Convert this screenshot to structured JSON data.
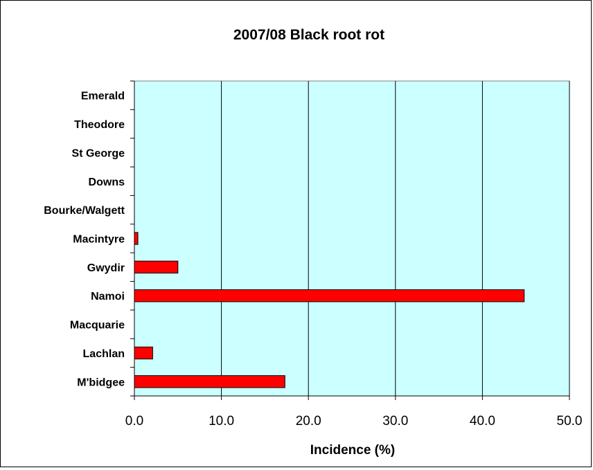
{
  "chart_data": {
    "type": "bar",
    "orientation": "horizontal",
    "title": "2007/08 Black root rot",
    "xlabel": "Incidence (%)",
    "ylabel": "",
    "categories": [
      "Emerald",
      "Theodore",
      "St George",
      "Downs",
      "Bourke/Walgett",
      "Macintyre",
      "Gwydir",
      "Namoi",
      "Macquarie",
      "Lachlan",
      "M'bidgee"
    ],
    "values": [
      0,
      0,
      0,
      0,
      0,
      0.4,
      5.0,
      44.8,
      0,
      2.1,
      17.3
    ],
    "xlim": [
      0,
      50
    ],
    "xticks": [
      0,
      10,
      20,
      30,
      40,
      50
    ],
    "xtick_labels": [
      "0.0",
      "10.0",
      "20.0",
      "30.0",
      "40.0",
      "50.0"
    ],
    "grid": "vertical",
    "legend": "none",
    "colors": {
      "bar": "#ff0000",
      "plot_background": "#ccffff",
      "gridline": "#000000"
    }
  }
}
